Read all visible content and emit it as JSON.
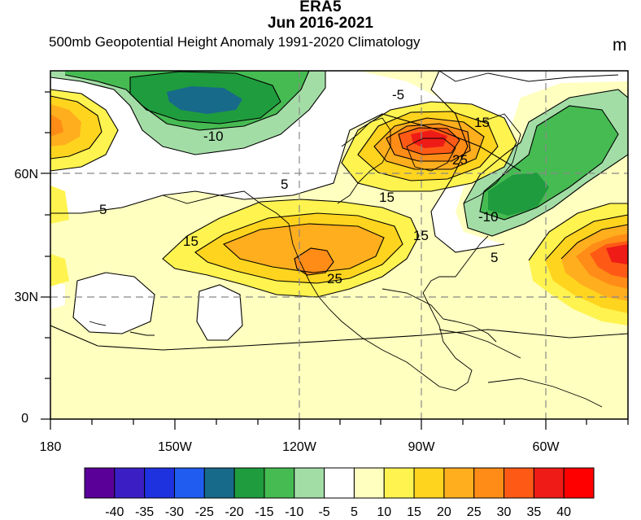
{
  "header": {
    "title": "ERA5",
    "subtitle": "Jun 2016-2021",
    "left_subtitle": "500mb Geopotential Height Anomaly  1991-2020 Climatology",
    "units": "m"
  },
  "axes": {
    "lat_labels": [
      "60N",
      "30N",
      "0"
    ],
    "lon_labels": [
      "180",
      "150W",
      "120W",
      "90W",
      "60W"
    ]
  },
  "contour_labels": [
    "5",
    "-10",
    "5",
    "-5",
    "15",
    "25",
    "15",
    "15",
    "25",
    "15",
    "-10",
    "5"
  ],
  "colorbar": {
    "labels": [
      "-40",
      "-35",
      "-30",
      "-25",
      "-20",
      "-15",
      "-10",
      "-5",
      "5",
      "10",
      "15",
      "20",
      "25",
      "30",
      "35",
      "40"
    ],
    "colors": [
      "#5a0099",
      "#3b1fc4",
      "#1f32e0",
      "#1f5cef",
      "#176a8a",
      "#1f9c3e",
      "#46bb52",
      "#a3dda6",
      "#ffffff",
      "#ffffbf",
      "#fff34f",
      "#ffd41e",
      "#ffae1e",
      "#ff8c16",
      "#fe5a16",
      "#ee1b16",
      "#ff0000"
    ]
  },
  "map": {
    "domain": "North Pacific / North America / North Atlantic",
    "projection": "cylindrical",
    "lon_range": [
      "180",
      "40W"
    ],
    "lat_range": [
      "0",
      "~83N"
    ]
  }
}
